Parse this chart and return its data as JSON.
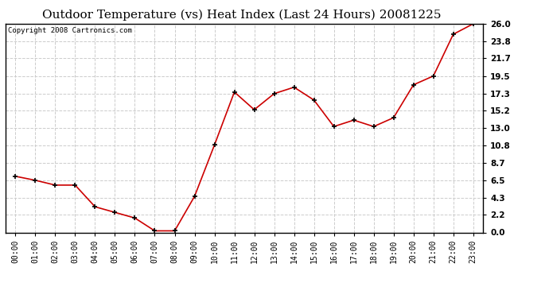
{
  "title": "Outdoor Temperature (vs) Heat Index (Last 24 Hours) 20081225",
  "copyright_text": "Copyright 2008 Cartronics.com",
  "hours": [
    "00:00",
    "01:00",
    "02:00",
    "03:00",
    "04:00",
    "05:00",
    "06:00",
    "07:00",
    "08:00",
    "09:00",
    "10:00",
    "11:00",
    "12:00",
    "13:00",
    "14:00",
    "15:00",
    "16:00",
    "17:00",
    "18:00",
    "19:00",
    "20:00",
    "21:00",
    "22:00",
    "23:00"
  ],
  "values": [
    7.0,
    6.5,
    5.9,
    5.9,
    3.2,
    2.5,
    1.8,
    0.2,
    0.2,
    4.5,
    10.9,
    17.5,
    15.3,
    17.3,
    18.1,
    16.5,
    13.2,
    14.0,
    13.2,
    14.3,
    18.4,
    19.5,
    24.7,
    26.0
  ],
  "line_color": "#cc0000",
  "marker_color": "#cc0000",
  "bg_color": "#ffffff",
  "plot_bg_color": "#ffffff",
  "grid_color": "#cccccc",
  "title_fontsize": 11,
  "copyright_fontsize": 6.5,
  "tick_fontsize": 7,
  "ylim": [
    0.0,
    26.0
  ],
  "yticks": [
    0.0,
    2.2,
    4.3,
    6.5,
    8.7,
    10.8,
    13.0,
    15.2,
    17.3,
    19.5,
    21.7,
    23.8,
    26.0
  ]
}
